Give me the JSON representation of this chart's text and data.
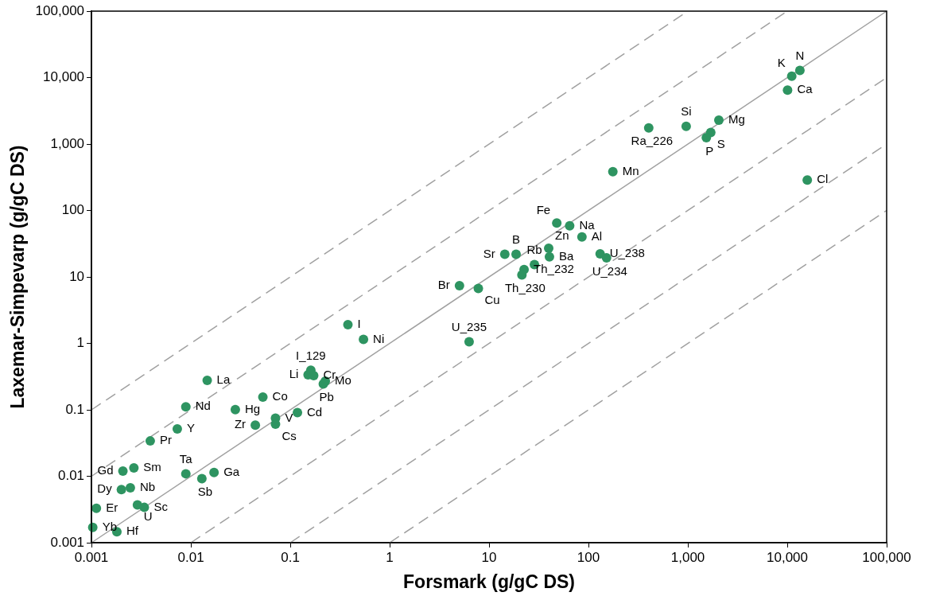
{
  "chart_data": {
    "type": "scatter",
    "xlabel": "Forsmark (g/gC DS)",
    "ylabel": "Laxemar-Simpevarp (g/gC DS)",
    "log": "xy",
    "grid": false,
    "legend": false,
    "marker": "circle",
    "xlim": [
      0.001,
      100000
    ],
    "ylim": [
      0.001,
      100000
    ],
    "xticks": [
      0.001,
      0.01,
      0.1,
      1,
      10,
      100,
      {
        "value": 1000,
        "label": "1,000"
      },
      {
        "value": 10000,
        "label": "10,000"
      },
      {
        "value": 100000,
        "label": "100,000"
      }
    ],
    "yticks": [
      0.001,
      0.01,
      0.1,
      1,
      10,
      100,
      {
        "value": 1000,
        "label": "1,000"
      },
      {
        "value": 10000,
        "label": "10,000"
      },
      {
        "value": 100000,
        "label": "100,000"
      }
    ],
    "series": [
      {
        "type": "scatter",
        "color": "#2e9461",
        "x": [
          0.00103,
          0.0018,
          0.00112,
          0.0029,
          0.0034,
          0.002,
          0.00246,
          0.00207,
          0.00267,
          0.0089,
          0.0129,
          0.0171,
          0.0039,
          0.0073,
          0.0089,
          0.0146,
          0.028,
          0.0445,
          0.053,
          0.071,
          0.071,
          0.118,
          0.151,
          0.161,
          0.172,
          0.225,
          0.215,
          0.38,
          0.545,
          5.04,
          7.8,
          6.3,
          48,
          64.7,
          86,
          14.4,
          18.7,
          39.8,
          40.5,
          28.6,
          22.5,
          21.4,
          131,
          152,
          13400,
          11100,
          10070,
          962,
          404,
          2050,
          1700,
          1535,
          176,
          15900
        ],
        "values": [
          0.0017,
          0.00146,
          0.0033,
          0.0037,
          0.0034,
          0.0063,
          0.0067,
          0.012,
          0.0134,
          0.0109,
          0.0092,
          0.0114,
          0.034,
          0.0515,
          0.111,
          0.278,
          0.101,
          0.059,
          0.155,
          0.075,
          0.061,
          0.091,
          0.337,
          0.394,
          0.327,
          0.27,
          0.245,
          1.91,
          1.15,
          7.4,
          6.7,
          1.06,
          64.7,
          58.7,
          40,
          22,
          22,
          27,
          20,
          15.3,
          12.9,
          10.7,
          22.3,
          19.4,
          12800,
          10500,
          6470,
          1850,
          1750,
          2280,
          1490,
          1245,
          384,
          288
        ]
      },
      {
        "type": "line",
        "color": "#a0a0a0",
        "marker": "none",
        "line_style": "solid",
        "x": [
          0.001,
          100000
        ],
        "values": [
          0.001,
          100000
        ]
      },
      {
        "type": "line",
        "color": "#a0a0a0",
        "marker": "none",
        "line_style": "dashed",
        "x": [
          0.001,
          10000
        ],
        "values": [
          0.01,
          100000
        ]
      },
      {
        "type": "line",
        "color": "#a0a0a0",
        "marker": "none",
        "line_style": "dashed",
        "x": [
          0.001,
          1000
        ],
        "values": [
          0.1,
          100000
        ]
      },
      {
        "type": "line",
        "color": "#a0a0a0",
        "marker": "none",
        "line_style": "dashed",
        "x": [
          0.01,
          100000
        ],
        "values": [
          0.001,
          10000
        ]
      },
      {
        "type": "line",
        "color": "#a0a0a0",
        "marker": "none",
        "line_style": "dashed",
        "x": [
          0.1,
          100000
        ],
        "values": [
          0.001,
          1000
        ]
      },
      {
        "type": "line",
        "color": "#a0a0a0",
        "marker": "none",
        "line_style": "dashed",
        "x": [
          1,
          100000
        ],
        "values": [
          0.001,
          100
        ]
      }
    ],
    "annotations": [
      {
        "text": "Yb",
        "x": 0.00103,
        "y": 0.0017
      },
      {
        "text": "Hf",
        "x": 0.0018,
        "y": 0.00146
      },
      {
        "text": "Er",
        "x": 0.00112,
        "y": 0.0033
      },
      {
        "text": "U",
        "x": 0.0029,
        "y": 0.0037
      },
      {
        "text": "Sc",
        "x": 0.0034,
        "y": 0.0034
      },
      {
        "text": "Dy",
        "x": 0.002,
        "y": 0.0063
      },
      {
        "text": "Nb",
        "x": 0.00246,
        "y": 0.0067
      },
      {
        "text": "Gd",
        "x": 0.00207,
        "y": 0.012
      },
      {
        "text": "Sm",
        "x": 0.00267,
        "y": 0.0134
      },
      {
        "text": "Ta",
        "x": 0.0089,
        "y": 0.0109
      },
      {
        "text": "Sb",
        "x": 0.0129,
        "y": 0.0092
      },
      {
        "text": "Ga",
        "x": 0.0171,
        "y": 0.0114
      },
      {
        "text": "Pr",
        "x": 0.0039,
        "y": 0.034
      },
      {
        "text": "Y",
        "x": 0.0073,
        "y": 0.0515
      },
      {
        "text": "Nd",
        "x": 0.0089,
        "y": 0.111
      },
      {
        "text": "La",
        "x": 0.0146,
        "y": 0.278
      },
      {
        "text": "Hg",
        "x": 0.028,
        "y": 0.101
      },
      {
        "text": "Zr",
        "x": 0.0445,
        "y": 0.059
      },
      {
        "text": "Co",
        "x": 0.053,
        "y": 0.155
      },
      {
        "text": "V",
        "x": 0.071,
        "y": 0.075
      },
      {
        "text": "Cs",
        "x": 0.071,
        "y": 0.061
      },
      {
        "text": "Cd",
        "x": 0.118,
        "y": 0.091
      },
      {
        "text": "Li",
        "x": 0.151,
        "y": 0.337
      },
      {
        "text": "I_129",
        "x": 0.161,
        "y": 0.394
      },
      {
        "text": "Cr",
        "x": 0.172,
        "y": 0.327
      },
      {
        "text": "Mo",
        "x": 0.225,
        "y": 0.27
      },
      {
        "text": "Pb",
        "x": 0.215,
        "y": 0.245
      },
      {
        "text": "I",
        "x": 0.38,
        "y": 1.91
      },
      {
        "text": "Ni",
        "x": 0.545,
        "y": 1.15
      },
      {
        "text": "Br",
        "x": 5.04,
        "y": 7.4
      },
      {
        "text": "Cu",
        "x": 7.8,
        "y": 6.7
      },
      {
        "text": "U_235",
        "x": 6.3,
        "y": 1.06
      },
      {
        "text": "Fe",
        "x": 48,
        "y": 64.7
      },
      {
        "text": "Na",
        "x": 64.7,
        "y": 58.7
      },
      {
        "text": "Al",
        "x": 86,
        "y": 40
      },
      {
        "text": "Sr",
        "x": 14.4,
        "y": 22
      },
      {
        "text": "B",
        "x": 18.7,
        "y": 22
      },
      {
        "text": "Zn",
        "x": 39.8,
        "y": 27
      },
      {
        "text": "Ba",
        "x": 40.5,
        "y": 20
      },
      {
        "text": "Rb",
        "x": 28.6,
        "y": 15.3
      },
      {
        "text": "Th_232",
        "x": 22.5,
        "y": 12.9
      },
      {
        "text": "Th_230",
        "x": 21.4,
        "y": 10.7
      },
      {
        "text": "U_238",
        "x": 131,
        "y": 22.3
      },
      {
        "text": "U_234",
        "x": 152,
        "y": 19.4
      },
      {
        "text": "N",
        "x": 13400,
        "y": 12800
      },
      {
        "text": "K",
        "x": 11100,
        "y": 10500
      },
      {
        "text": "Ca",
        "x": 10070,
        "y": 6470
      },
      {
        "text": "Si",
        "x": 962,
        "y": 1850
      },
      {
        "text": "Ra_226",
        "x": 404,
        "y": 1750
      },
      {
        "text": "Mg",
        "x": 2050,
        "y": 2280
      },
      {
        "text": "S",
        "x": 1700,
        "y": 1490
      },
      {
        "text": "P",
        "x": 1535,
        "y": 1245
      },
      {
        "text": "Mn",
        "x": 176,
        "y": 384
      },
      {
        "text": "Cl",
        "x": 15900,
        "y": 288
      }
    ]
  }
}
